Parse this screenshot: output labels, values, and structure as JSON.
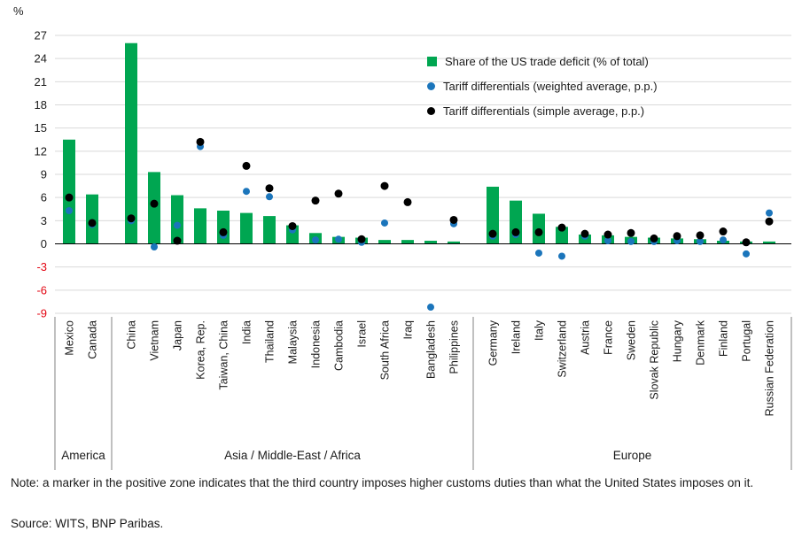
{
  "note": "Note: a marker in the positive zone indicates that the third country imposes higher customs duties than what the United States imposes on it.",
  "source": "Source: WITS, BNP Paribas.",
  "chart_data": {
    "type": "bar",
    "title": "",
    "ylabel": "%",
    "ylim": [
      -9,
      27
    ],
    "ytick_step": 3,
    "grid": true,
    "legend_position": "top-right-inside",
    "grid_color": "#d9d9d9",
    "axis_color": "#000000",
    "separator_color": "#808080",
    "text_color": "#1a1a1a",
    "negative_tick_color": "#e30613",
    "series": [
      {
        "name": "Share of the US trade deficit (% of total)",
        "type": "bar",
        "color": "#00A651",
        "marker": "square"
      },
      {
        "name": "Tariff differentials (weighted average, p.p.)",
        "type": "scatter",
        "color": "#1B75BB",
        "marker": "circle"
      },
      {
        "name": "Tariff differentials (simple average, p.p.)",
        "type": "scatter",
        "color": "#000000",
        "marker": "circle"
      }
    ],
    "values_key_order": [
      "deficit_share_pct",
      "tariff_diff_weighted_pp",
      "tariff_diff_simple_pp"
    ],
    "groups": [
      {
        "label": "America",
        "countries": [
          {
            "name": "Mexico",
            "values": [
              13.5,
              4.3,
              6.0
            ]
          },
          {
            "name": "Canada",
            "values": [
              6.4,
              2.5,
              2.7
            ]
          }
        ]
      },
      {
        "label": "Asia / Middle-East / Africa",
        "countries": [
          {
            "name": "China",
            "values": [
              26.0,
              3.0,
              3.3
            ]
          },
          {
            "name": "Vietnam",
            "values": [
              9.3,
              -0.4,
              5.2
            ]
          },
          {
            "name": "Japan",
            "values": [
              6.3,
              2.4,
              0.4
            ]
          },
          {
            "name": "Korea, Rep.",
            "values": [
              4.6,
              12.6,
              13.2
            ]
          },
          {
            "name": "Taiwan, China",
            "values": [
              4.3,
              1.1,
              1.5
            ]
          },
          {
            "name": "India",
            "values": [
              4.0,
              6.8,
              10.1
            ]
          },
          {
            "name": "Thailand",
            "values": [
              3.6,
              6.1,
              7.2
            ]
          },
          {
            "name": "Malaysia",
            "values": [
              2.4,
              1.8,
              2.3
            ]
          },
          {
            "name": "Indonesia",
            "values": [
              1.4,
              0.5,
              5.6
            ]
          },
          {
            "name": "Cambodia",
            "values": [
              0.9,
              0.6,
              6.5
            ]
          },
          {
            "name": "Israel",
            "values": [
              0.8,
              0.2,
              0.6
            ]
          },
          {
            "name": "South Africa",
            "values": [
              0.5,
              2.7,
              7.5
            ]
          },
          {
            "name": "Iraq",
            "values": [
              0.5,
              null,
              5.4
            ]
          },
          {
            "name": "Bangladesh",
            "values": [
              0.4,
              -8.2,
              null
            ]
          },
          {
            "name": "Philippines",
            "values": [
              0.3,
              2.6,
              3.1
            ]
          }
        ]
      },
      {
        "label": "Europe",
        "countries": [
          {
            "name": "Germany",
            "values": [
              7.4,
              1.0,
              1.3
            ]
          },
          {
            "name": "Ireland",
            "values": [
              5.6,
              1.2,
              1.5
            ]
          },
          {
            "name": "Italy",
            "values": [
              3.9,
              -1.2,
              1.5
            ]
          },
          {
            "name": "Switzerland",
            "values": [
              2.2,
              -1.6,
              2.1
            ]
          },
          {
            "name": "Austria",
            "values": [
              1.2,
              1.0,
              1.3
            ]
          },
          {
            "name": "France",
            "values": [
              1.1,
              0.4,
              1.2
            ]
          },
          {
            "name": "Sweden",
            "values": [
              0.9,
              0.3,
              1.4
            ]
          },
          {
            "name": "Slovak Republic",
            "values": [
              0.8,
              0.3,
              0.7
            ]
          },
          {
            "name": "Hungary",
            "values": [
              0.7,
              0.4,
              1.0
            ]
          },
          {
            "name": "Denmark",
            "values": [
              0.6,
              0.3,
              1.1
            ]
          },
          {
            "name": "Finland",
            "values": [
              0.4,
              0.5,
              1.6
            ]
          },
          {
            "name": "Portugal",
            "values": [
              0.3,
              -1.3,
              0.2
            ]
          },
          {
            "name": "Russian Federation",
            "values": [
              0.3,
              4.0,
              2.9
            ]
          }
        ]
      }
    ]
  }
}
